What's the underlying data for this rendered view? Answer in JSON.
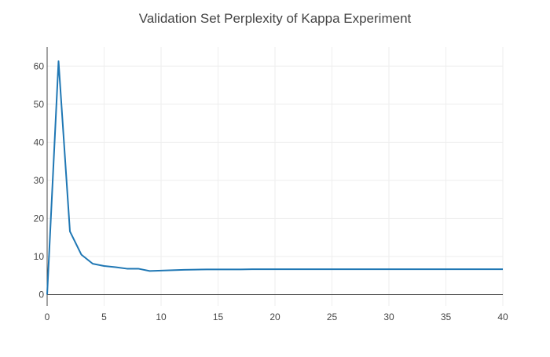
{
  "chart_data": {
    "type": "line",
    "title": "Validation Set Perplexity of Kappa Experiment",
    "xlabel": "",
    "ylabel": "",
    "xlim": [
      0,
      40
    ],
    "ylim": [
      -3,
      65
    ],
    "xticks": [
      0,
      5,
      10,
      15,
      20,
      25,
      30,
      35,
      40
    ],
    "yticks": [
      0,
      10,
      20,
      30,
      40,
      50,
      60
    ],
    "grid": true,
    "legend": "none",
    "colors": {
      "line": "#1f77b4",
      "grid": "#eeeeee",
      "axis": "#444444"
    },
    "series": [
      {
        "x": [
          0,
          1,
          2,
          3,
          4,
          5,
          6,
          7,
          8,
          9,
          10,
          11,
          12,
          13,
          14,
          15,
          16,
          17,
          18,
          19,
          20,
          21,
          22,
          23,
          24,
          25,
          26,
          27,
          28,
          29,
          30,
          31,
          32,
          33,
          34,
          35,
          36,
          37,
          38,
          39,
          40
        ],
        "y": [
          0,
          61.3,
          16.6,
          10.5,
          8.1,
          7.5,
          7.2,
          6.8,
          6.8,
          6.2,
          6.3,
          6.4,
          6.5,
          6.55,
          6.6,
          6.6,
          6.6,
          6.6,
          6.65,
          6.65,
          6.65,
          6.65,
          6.65,
          6.65,
          6.65,
          6.65,
          6.65,
          6.65,
          6.65,
          6.65,
          6.65,
          6.65,
          6.65,
          6.65,
          6.65,
          6.65,
          6.65,
          6.65,
          6.65,
          6.65,
          6.65
        ]
      }
    ]
  }
}
